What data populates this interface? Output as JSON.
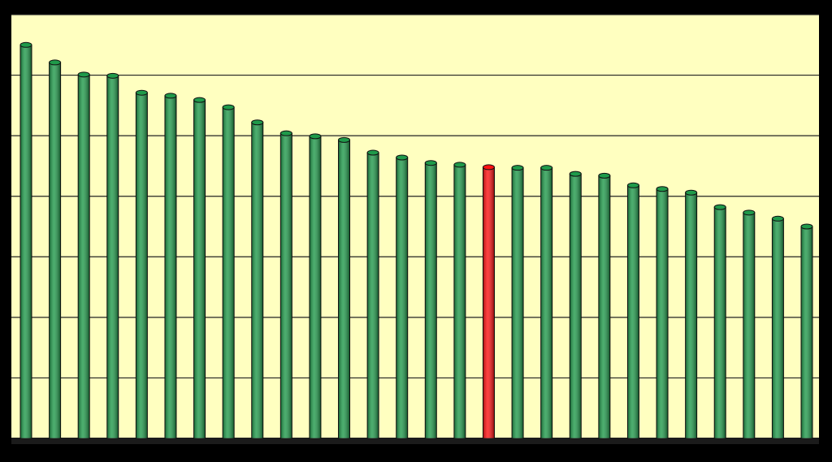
{
  "chart_data": {
    "type": "bar",
    "categories": [
      null,
      null,
      null,
      null,
      null,
      null,
      null,
      null,
      null,
      null,
      null,
      null,
      null,
      null,
      null,
      null,
      null,
      null,
      null,
      null,
      null,
      null,
      null,
      null,
      null,
      null,
      null,
      null
    ],
    "values": [
      6.5,
      6.21,
      6.01,
      5.99,
      5.71,
      5.66,
      5.59,
      5.47,
      5.22,
      5.04,
      4.99,
      4.93,
      4.72,
      4.64,
      4.55,
      4.52,
      4.48,
      4.47,
      4.47,
      4.37,
      4.34,
      4.18,
      4.12,
      4.06,
      3.82,
      3.73,
      3.63,
      3.5
    ],
    "colors": [
      "#1f9a4a",
      "#1f9a4a",
      "#1f9a4a",
      "#1f9a4a",
      "#1f9a4a",
      "#1f9a4a",
      "#1f9a4a",
      "#1f9a4a",
      "#1f9a4a",
      "#1f9a4a",
      "#1f9a4a",
      "#1f9a4a",
      "#1f9a4a",
      "#1f9a4a",
      "#1f9a4a",
      "#1f9a4a",
      "#ff1010",
      "#1f9a4a",
      "#1f9a4a",
      "#1f9a4a",
      "#1f9a4a",
      "#1f9a4a",
      "#1f9a4a",
      "#1f9a4a",
      "#1f9a4a",
      "#1f9a4a",
      "#1f9a4a",
      "#1f9a4a"
    ],
    "ylim": [
      0,
      7
    ],
    "yticks": [
      0,
      1,
      2,
      3,
      4,
      5,
      6,
      7
    ],
    "grid": true
  }
}
